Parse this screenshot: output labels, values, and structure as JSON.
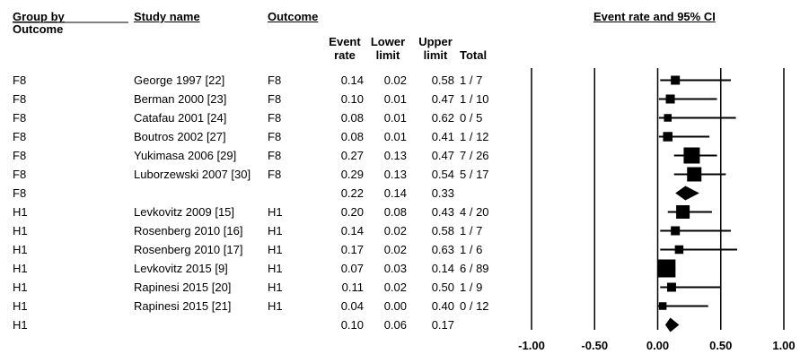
{
  "headers": {
    "group_by": "Group by",
    "outcome_group": "Outcome",
    "study_name": "Study name",
    "outcome": "Outcome",
    "plot_title": "Event rate and 95% CI"
  },
  "subheaders": {
    "event_rate": [
      "Event",
      "rate"
    ],
    "lower_limit": [
      "Lower",
      "limit"
    ],
    "upper_limit": [
      "Upper",
      "limit"
    ],
    "total": "Total"
  },
  "chart_data": {
    "type": "forest",
    "x_ticks": [
      "-1.00",
      "-0.50",
      "0.00",
      "0.50",
      "1.00"
    ],
    "xlim": [
      -1.0,
      1.0
    ],
    "rows": [
      {
        "group": "F8",
        "study": "George 1997 [22]",
        "outcome": "F8",
        "rate": 0.14,
        "rate_text": "0.14",
        "lower_text": "0.02",
        "upper_text": "0.58",
        "lower": 0.02,
        "upper": 0.58,
        "total": "1 / 7",
        "weight": 1,
        "summary": false
      },
      {
        "group": "F8",
        "study": "Berman 2000 [23]",
        "outcome": "F8",
        "rate": 0.1,
        "rate_text": "0.10",
        "lower_text": "0.01",
        "upper_text": "0.47",
        "lower": 0.01,
        "upper": 0.47,
        "total": "1 / 10",
        "weight": 1,
        "summary": false
      },
      {
        "group": "F8",
        "study": "Catafau 2001 [24]",
        "outcome": "F8",
        "rate": 0.08,
        "rate_text": "0.08",
        "lower_text": "0.01",
        "upper_text": "0.62",
        "lower": 0.01,
        "upper": 0.62,
        "total": "0 / 5",
        "weight": 0.7,
        "summary": false
      },
      {
        "group": "F8",
        "study": "Boutros 2002 [27]",
        "outcome": "F8",
        "rate": 0.08,
        "rate_text": "0.08",
        "lower_text": "0.01",
        "upper_text": "0.41",
        "lower": 0.01,
        "upper": 0.41,
        "total": "1 / 12",
        "weight": 1.1,
        "summary": false
      },
      {
        "group": "F8",
        "study": "Yukimasa 2006 [29]",
        "outcome": "F8",
        "rate": 0.27,
        "rate_text": "0.27",
        "lower_text": "0.13",
        "upper_text": "0.47",
        "lower": 0.13,
        "upper": 0.47,
        "total": "7 / 26",
        "weight": 2.6,
        "summary": false
      },
      {
        "group": "F8",
        "study": "Luborzewski 2007 [30]",
        "outcome": "F8",
        "rate": 0.29,
        "rate_text": "0.29",
        "lower_text": "0.13",
        "upper_text": "0.54",
        "lower": 0.13,
        "upper": 0.54,
        "total": "5 / 17",
        "weight": 2.2,
        "summary": false
      },
      {
        "group": "F8",
        "study": "",
        "outcome": "",
        "rate": 0.22,
        "rate_text": "0.22",
        "lower_text": "0.14",
        "upper_text": "0.33",
        "lower": 0.14,
        "upper": 0.33,
        "total": "",
        "weight": 1,
        "summary": true
      },
      {
        "group": "H1",
        "study": "Levkovitz 2009 [15]",
        "outcome": "H1",
        "rate": 0.2,
        "rate_text": "0.20",
        "lower_text": "0.08",
        "upper_text": "0.43",
        "lower": 0.08,
        "upper": 0.43,
        "total": "4 / 20",
        "weight": 2.0,
        "summary": false
      },
      {
        "group": "H1",
        "study": "Rosenberg 2010 [16]",
        "outcome": "H1",
        "rate": 0.14,
        "rate_text": "0.14",
        "lower_text": "0.02",
        "upper_text": "0.58",
        "lower": 0.02,
        "upper": 0.58,
        "total": "1 / 7",
        "weight": 1,
        "summary": false
      },
      {
        "group": "H1",
        "study": "Rosenberg 2010 [17]",
        "outcome": "H1",
        "rate": 0.17,
        "rate_text": "0.17",
        "lower_text": "0.02",
        "upper_text": "0.63",
        "lower": 0.02,
        "upper": 0.63,
        "total": "1 / 6",
        "weight": 0.9,
        "summary": false
      },
      {
        "group": "H1",
        "study": "Levkovitz 2015 [9]",
        "outcome": "H1",
        "rate": 0.07,
        "rate_text": "0.07",
        "lower_text": "0.03",
        "upper_text": "0.14",
        "lower": 0.03,
        "upper": 0.14,
        "total": "6 / 89",
        "weight": 3.0,
        "summary": false
      },
      {
        "group": "H1",
        "study": "Rapinesi 2015 [20]",
        "outcome": "H1",
        "rate": 0.11,
        "rate_text": "0.11",
        "lower_text": "0.02",
        "upper_text": "0.50",
        "lower": 0.02,
        "upper": 0.5,
        "total": "1 / 9",
        "weight": 1,
        "summary": false
      },
      {
        "group": "H1",
        "study": "Rapinesi 2015 [21]",
        "outcome": "H1",
        "rate": 0.04,
        "rate_text": "0.04",
        "lower_text": "0.00",
        "upper_text": "0.40",
        "lower": 0.0,
        "upper": 0.4,
        "total": "0 / 12",
        "weight": 0.7,
        "summary": false
      },
      {
        "group": "H1",
        "study": "",
        "outcome": "",
        "rate": 0.1,
        "rate_text": "0.10",
        "lower_text": "0.06",
        "upper_text": "0.17",
        "lower": 0.06,
        "upper": 0.17,
        "total": "",
        "weight": 1,
        "summary": true
      }
    ]
  }
}
